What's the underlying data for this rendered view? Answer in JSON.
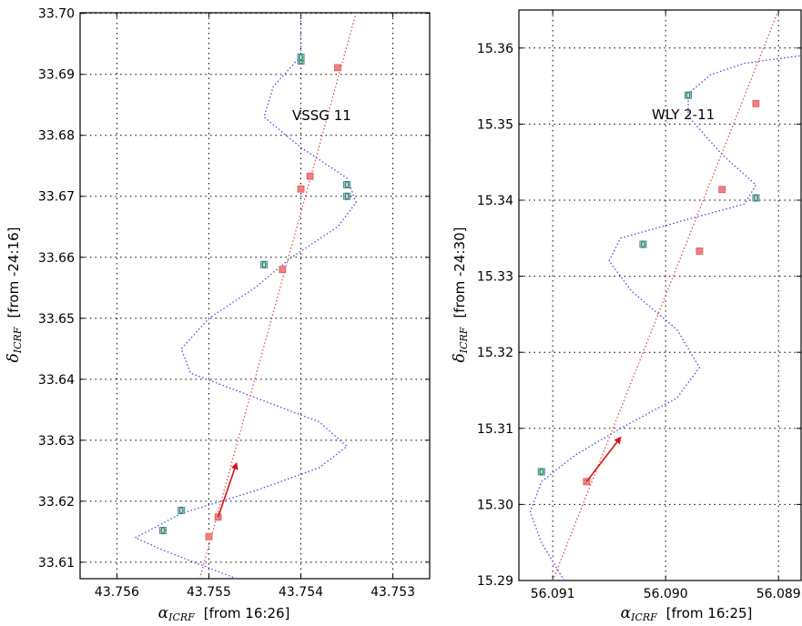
{
  "chart_data": [
    {
      "type": "scatter",
      "annotation": "VSSG 11",
      "xlabel": {
        "symbol": "α",
        "sub": "ICRF",
        "suffix": "[from  16:26]"
      },
      "ylabel": {
        "symbol": "δ",
        "sub": "ICRF",
        "suffix": "[from  -24:16]"
      },
      "xlim": [
        43.7564,
        43.7526
      ],
      "ylim": [
        33.7001,
        33.6073
      ],
      "xticks": [
        "43.756",
        "43.755",
        "43.754",
        "43.753"
      ],
      "yticks": [
        "33.61",
        "33.62",
        "33.63",
        "33.64",
        "33.65",
        "33.66",
        "33.67",
        "33.68",
        "33.69",
        "33.70"
      ],
      "grid": true,
      "colors": {
        "parallax_curve": "#4a4ae0",
        "linear_motion": "#e04040",
        "model_point": "#f08080",
        "obs_marker": "#4a7fc0",
        "obs_fill": "#2a8a2a",
        "arrow": "#dd1111"
      },
      "parallax_curve": [
        [
          43.7547,
          33.6073
        ],
        [
          43.7555,
          33.612
        ],
        [
          43.7558,
          33.614
        ],
        [
          43.7553,
          33.618
        ],
        [
          43.7545,
          33.6217
        ],
        [
          43.7538,
          33.6255
        ],
        [
          43.7535,
          33.629
        ],
        [
          43.7538,
          33.633
        ],
        [
          43.7545,
          33.637
        ],
        [
          43.7552,
          33.641
        ],
        [
          43.7553,
          33.645
        ],
        [
          43.755,
          33.65
        ],
        [
          43.7545,
          33.655
        ],
        [
          43.7541,
          33.66
        ],
        [
          43.7536,
          33.665
        ],
        [
          43.7534,
          33.669
        ],
        [
          43.7535,
          33.673
        ],
        [
          43.754,
          33.678
        ],
        [
          43.7544,
          33.683
        ],
        [
          43.7543,
          33.688
        ],
        [
          43.754,
          33.693
        ],
        [
          43.754,
          33.7001
        ]
      ],
      "linear_motion": [
        [
          43.7551,
          33.6073
        ],
        [
          43.7534,
          33.7001
        ]
      ],
      "model_points": [
        [
          43.755,
          33.6142
        ],
        [
          43.7549,
          33.6174
        ],
        [
          43.7542,
          33.658
        ],
        [
          43.754,
          33.6712
        ],
        [
          43.7539,
          33.6733
        ],
        [
          43.7536,
          33.6911
        ]
      ],
      "observations": [
        [
          43.7555,
          33.6152
        ],
        [
          43.7553,
          33.6185
        ],
        [
          43.7544,
          33.6588
        ],
        [
          43.7535,
          33.67
        ],
        [
          43.7535,
          33.6719
        ],
        [
          43.754,
          33.6922
        ],
        [
          43.754,
          33.6928
        ]
      ],
      "arrow": {
        "from": [
          43.7549,
          33.6174
        ],
        "to": [
          43.7547,
          33.6262
        ]
      }
    },
    {
      "type": "scatter",
      "annotation": "WLY 2-11",
      "xlabel": {
        "symbol": "α",
        "sub": "ICRF",
        "suffix": "[from  16:25]"
      },
      "ylabel": {
        "symbol": "δ",
        "sub": "ICRF",
        "suffix": "[from  -24:30]"
      },
      "xlim": [
        56.0913,
        56.0888
      ],
      "ylim": [
        15.365,
        15.29
      ],
      "xticks": [
        "56.091",
        "56.090",
        "56.089"
      ],
      "yticks": [
        "15.29",
        "15.30",
        "15.31",
        "15.32",
        "15.33",
        "15.34",
        "15.35",
        "15.36"
      ],
      "grid": true,
      "colors": {
        "parallax_curve": "#4a4ae0",
        "linear_motion": "#e04040",
        "model_point": "#f08080",
        "obs_marker": "#4a7fc0",
        "obs_fill": "#2a8a2a",
        "arrow": "#dd1111"
      },
      "parallax_curve": [
        [
          56.0909,
          15.29
        ],
        [
          56.0911,
          15.295
        ],
        [
          56.0912,
          15.299
        ],
        [
          56.0911,
          15.303
        ],
        [
          56.0908,
          15.3065
        ],
        [
          56.0904,
          15.31
        ],
        [
          56.0899,
          15.314
        ],
        [
          56.0897,
          15.318
        ],
        [
          56.0899,
          15.323
        ],
        [
          56.0903,
          15.328
        ],
        [
          56.0905,
          15.332
        ],
        [
          56.0904,
          15.335
        ],
        [
          56.0898,
          15.3375
        ],
        [
          56.0893,
          15.3395
        ],
        [
          56.0892,
          15.342
        ],
        [
          56.0895,
          15.346
        ],
        [
          56.0898,
          15.351
        ],
        [
          56.0898,
          15.354
        ],
        [
          56.0896,
          15.3565
        ],
        [
          56.0893,
          15.358
        ],
        [
          56.0888,
          15.359
        ]
      ],
      "linear_motion": [
        [
          56.091,
          15.29
        ],
        [
          56.089,
          15.365
        ]
      ],
      "model_points": [
        [
          56.0907,
          15.303
        ],
        [
          56.0897,
          15.3333
        ],
        [
          56.0895,
          15.3414
        ],
        [
          56.0892,
          15.3527
        ]
      ],
      "observations": [
        [
          56.0911,
          15.3043
        ],
        [
          56.0902,
          15.3342
        ],
        [
          56.0892,
          15.3403
        ],
        [
          56.0898,
          15.3538
        ]
      ],
      "arrow": {
        "from": [
          56.0907,
          15.303
        ],
        "to": [
          56.0904,
          15.3088
        ]
      }
    }
  ]
}
